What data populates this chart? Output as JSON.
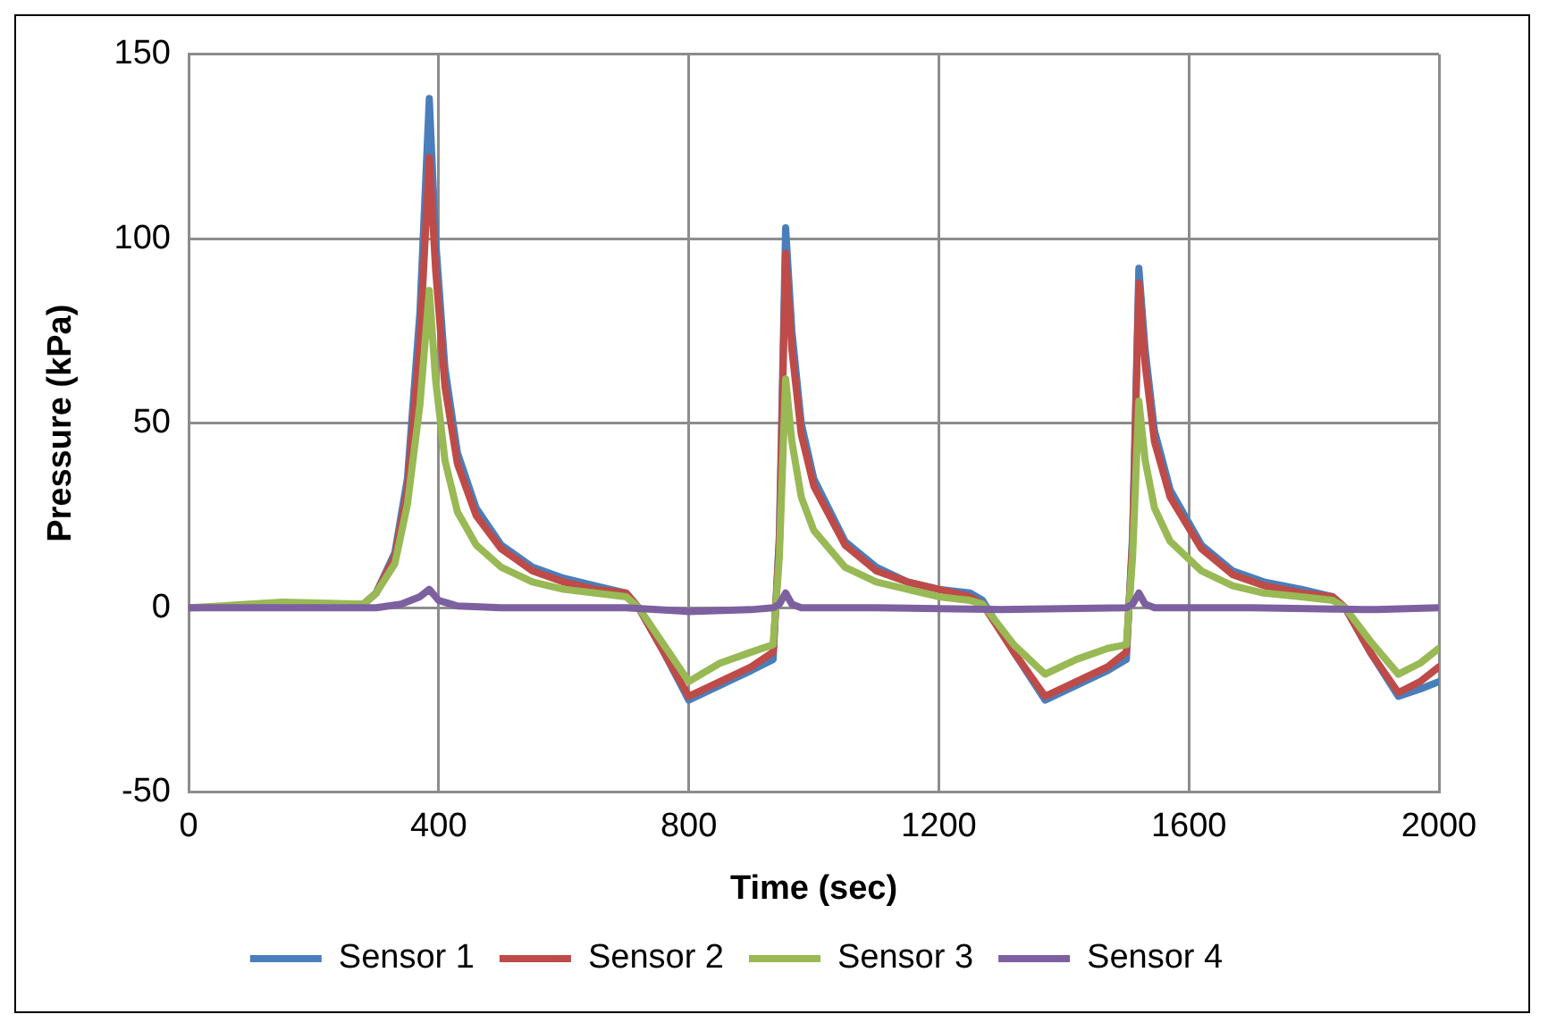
{
  "chart_data": {
    "type": "line",
    "xlabel": "Time (sec)",
    "ylabel": "Pressure (kPa)",
    "xlim": [
      0,
      2000
    ],
    "xticks": [
      0,
      400,
      800,
      1200,
      1600,
      2000
    ],
    "ylim": [
      -50,
      150
    ],
    "yticks": [
      -50,
      0,
      50,
      100,
      150
    ],
    "grid": true,
    "legend": "bottom",
    "marker": "none",
    "line_style": "solid",
    "series": [
      {
        "name": "Sensor 1",
        "color": "#4a7ebb",
        "x": [
          0,
          150,
          280,
          300,
          330,
          350,
          370,
          385,
          395,
          410,
          430,
          460,
          500,
          550,
          600,
          650,
          700,
          720,
          760,
          800,
          850,
          900,
          935,
          945,
          955,
          965,
          980,
          1000,
          1050,
          1100,
          1150,
          1200,
          1250,
          1270,
          1320,
          1370,
          1420,
          1470,
          1500,
          1510,
          1520,
          1530,
          1545,
          1570,
          1620,
          1670,
          1720,
          1780,
          1830,
          1850,
          1890,
          1935,
          1970,
          2000
        ],
        "values": [
          0,
          0.5,
          1,
          4,
          15,
          35,
          80,
          138,
          100,
          65,
          42,
          27,
          17,
          11,
          8,
          6,
          4,
          0,
          -12,
          -25,
          -21,
          -17,
          -14,
          20,
          103,
          75,
          50,
          35,
          18,
          11,
          7,
          5,
          4,
          2,
          -12,
          -25,
          -21,
          -17,
          -14,
          20,
          92,
          70,
          48,
          32,
          17,
          10,
          7,
          5,
          3,
          0,
          -12,
          -24,
          -22,
          -20
        ]
      },
      {
        "name": "Sensor 2",
        "color": "#be4b48",
        "x": [
          280,
          300,
          330,
          350,
          370,
          385,
          395,
          410,
          430,
          460,
          500,
          550,
          600,
          650,
          700,
          720,
          760,
          800,
          850,
          900,
          935,
          945,
          955,
          965,
          980,
          1000,
          1050,
          1100,
          1150,
          1200,
          1250,
          1270,
          1320,
          1370,
          1420,
          1470,
          1500,
          1510,
          1520,
          1530,
          1545,
          1570,
          1620,
          1670,
          1720,
          1780,
          1830,
          1850,
          1890,
          1935,
          1970,
          2000
        ],
        "values": [
          1,
          4,
          14,
          32,
          72,
          122,
          92,
          60,
          39,
          25,
          16,
          10,
          7,
          5,
          4,
          0,
          -12,
          -24,
          -20,
          -16,
          -12,
          18,
          96,
          70,
          47,
          33,
          17,
          10,
          7,
          5,
          3,
          1,
          -12,
          -24,
          -20,
          -16,
          -12,
          18,
          88,
          66,
          45,
          30,
          16,
          9,
          6,
          4,
          3,
          0,
          -12,
          -23,
          -20,
          -16
        ]
      },
      {
        "name": "Sensor 3",
        "color": "#98b954",
        "x": [
          0,
          150,
          280,
          300,
          330,
          350,
          370,
          385,
          395,
          410,
          430,
          460,
          500,
          550,
          600,
          650,
          700,
          720,
          760,
          800,
          850,
          900,
          935,
          945,
          955,
          965,
          980,
          1000,
          1050,
          1100,
          1150,
          1200,
          1250,
          1270,
          1320,
          1370,
          1420,
          1470,
          1500,
          1510,
          1520,
          1530,
          1545,
          1570,
          1620,
          1670,
          1720,
          1780,
          1830,
          1850,
          1890,
          1935,
          1970,
          2000
        ],
        "values": [
          0,
          1.5,
          1,
          4,
          12,
          28,
          55,
          86,
          62,
          40,
          26,
          17,
          11,
          7,
          5,
          4,
          3,
          0,
          -10,
          -20,
          -15,
          -12,
          -10,
          14,
          62,
          45,
          30,
          21,
          11,
          7,
          5,
          3,
          2,
          1,
          -10,
          -18,
          -14,
          -11,
          -10,
          14,
          56,
          40,
          27,
          18,
          10,
          6,
          4,
          3,
          2,
          0,
          -9,
          -18,
          -15,
          -11
        ]
      },
      {
        "name": "Sensor 4",
        "color": "#7d60a0",
        "x": [
          0,
          300,
          340,
          370,
          385,
          400,
          430,
          500,
          700,
          800,
          900,
          935,
          945,
          955,
          965,
          980,
          1100,
          1300,
          1500,
          1510,
          1520,
          1530,
          1545,
          1700,
          1900,
          2000
        ],
        "values": [
          0,
          0,
          1,
          3,
          5,
          2,
          0.5,
          0,
          0,
          -1,
          -0.5,
          0,
          1,
          4,
          1,
          0,
          0,
          -0.5,
          0,
          1,
          4,
          1,
          0,
          0,
          -0.5,
          0
        ]
      }
    ]
  }
}
